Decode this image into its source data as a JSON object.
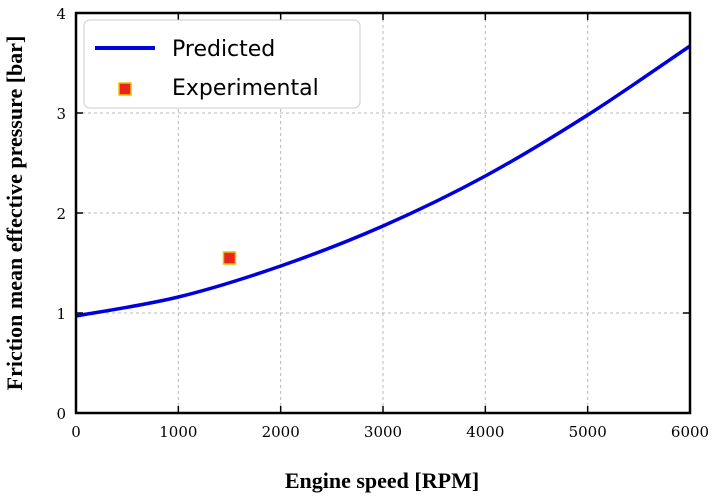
{
  "chart_data": {
    "type": "line",
    "title": "",
    "xlabel": "Engine speed [RPM]",
    "ylabel": "Friction mean effective pressure [bar]",
    "xlim": [
      0,
      6000
    ],
    "ylim": [
      0,
      4
    ],
    "xticks": [
      0,
      1000,
      2000,
      3000,
      4000,
      5000,
      6000
    ],
    "yticks": [
      0,
      1,
      2,
      3,
      4
    ],
    "grid": true,
    "legend_position": "top-left",
    "series": [
      {
        "name": "Predicted",
        "kind": "line",
        "color": "#0000dd",
        "x": [
          0,
          1000,
          2000,
          3000,
          4000,
          5000,
          6000
        ],
        "y": [
          0.97,
          1.16,
          1.47,
          1.87,
          2.37,
          2.98,
          3.67
        ]
      },
      {
        "name": "Experimental",
        "kind": "marker",
        "marker": "square",
        "color": "#e8241c",
        "edge_color": "#f0c000",
        "x": [
          1500
        ],
        "y": [
          1.55
        ]
      }
    ]
  }
}
